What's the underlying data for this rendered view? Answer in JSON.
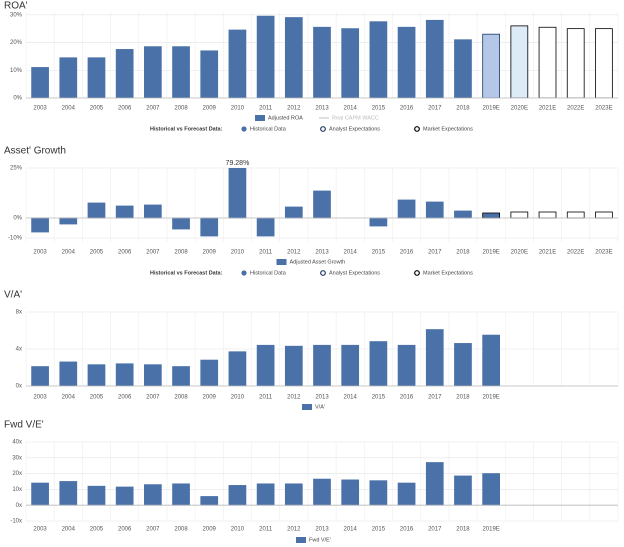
{
  "chart_data": [
    {
      "type": "bar",
      "title": "ROA'",
      "categories": [
        "2003",
        "2004",
        "2005",
        "2006",
        "2007",
        "2008",
        "2009",
        "2010",
        "2011",
        "2012",
        "2013",
        "2014",
        "2015",
        "2016",
        "2017",
        "2018",
        "2019E",
        "2020E",
        "2021E",
        "2022E",
        "2023E"
      ],
      "values": [
        11,
        14.5,
        14.5,
        17.5,
        18.5,
        18.5,
        17,
        24.5,
        29.5,
        29,
        25.5,
        25,
        27.5,
        25.5,
        28,
        21,
        23,
        26,
        25.5,
        25,
        25
      ],
      "colors": [
        "#4a72a8",
        "#4a72a8",
        "#4a72a8",
        "#4a72a8",
        "#4a72a8",
        "#4a72a8",
        "#4a72a8",
        "#4a72a8",
        "#4a72a8",
        "#4a72a8",
        "#4a72a8",
        "#4a72a8",
        "#4a72a8",
        "#4a72a8",
        "#4a72a8",
        "#4a72a8",
        "#b4c7e7",
        "#ddebf7",
        "#ffffff",
        "#ffffff",
        "#ffffff"
      ],
      "edgecolors": [
        "#4a72a8",
        "#4a72a8",
        "#4a72a8",
        "#4a72a8",
        "#4a72a8",
        "#4a72a8",
        "#4a72a8",
        "#4a72a8",
        "#4a72a8",
        "#4a72a8",
        "#4a72a8",
        "#4a72a8",
        "#4a72a8",
        "#4a72a8",
        "#4a72a8",
        "#4a72a8",
        "#1f3864",
        "#000000",
        "#000000",
        "#000000",
        "#000000"
      ],
      "ylim": [
        0,
        31
      ],
      "yticks": [
        {
          "value": 0,
          "label": "0%"
        },
        {
          "value": 10,
          "label": "10%"
        },
        {
          "value": 20,
          "label": "20%"
        },
        {
          "value": 30,
          "label": "30%"
        }
      ],
      "legend": [
        {
          "label": "Adjusted ROA",
          "color": "#4a72a8",
          "kind": "box"
        },
        {
          "label": "Real CAPM WACC",
          "color": "#cccccc",
          "kind": "line"
        }
      ],
      "forecast_legend": {
        "title": "Historical vs Forecast Data:",
        "items": [
          {
            "label": "Historical Data",
            "color": "#4a72a8",
            "kind": "dot"
          },
          {
            "label": "Analyst Expectations",
            "color": "#1f3864",
            "kind": "ring"
          },
          {
            "label": "Market Expectations",
            "color": "#000000",
            "kind": "ring"
          }
        ]
      }
    },
    {
      "type": "bar",
      "title": "Asset' Growth",
      "categories": [
        "2003",
        "2004",
        "2005",
        "2006",
        "2007",
        "2008",
        "2009",
        "2010",
        "2011",
        "2012",
        "2013",
        "2014",
        "2015",
        "2016",
        "2017",
        "2018",
        "2019E",
        "2020E",
        "2021E",
        "2022E",
        "2023E"
      ],
      "values": [
        -7,
        -3,
        7.5,
        6,
        6.5,
        -5.5,
        -9,
        79.28,
        -9,
        5.5,
        13.5,
        0,
        -4,
        9,
        8,
        3.5,
        2.5,
        3,
        3,
        3,
        3
      ],
      "value_labels": [
        null,
        null,
        null,
        null,
        null,
        null,
        null,
        "79.28%",
        null,
        null,
        null,
        null,
        null,
        null,
        null,
        null,
        null,
        null,
        null,
        null,
        null
      ],
      "colors": [
        "#4a72a8",
        "#4a72a8",
        "#4a72a8",
        "#4a72a8",
        "#4a72a8",
        "#4a72a8",
        "#4a72a8",
        "#4a72a8",
        "#4a72a8",
        "#4a72a8",
        "#4a72a8",
        "#4a72a8",
        "#4a72a8",
        "#4a72a8",
        "#4a72a8",
        "#4a72a8",
        "#4a72a8",
        "#ffffff",
        "#ffffff",
        "#ffffff",
        "#ffffff"
      ],
      "edgecolors": [
        "#4a72a8",
        "#4a72a8",
        "#4a72a8",
        "#4a72a8",
        "#4a72a8",
        "#4a72a8",
        "#4a72a8",
        "#4a72a8",
        "#4a72a8",
        "#4a72a8",
        "#4a72a8",
        "#4a72a8",
        "#4a72a8",
        "#4a72a8",
        "#4a72a8",
        "#4a72a8",
        "#000000",
        "#000000",
        "#000000",
        "#000000",
        "#000000"
      ],
      "ylim": [
        -12,
        25
      ],
      "yticks": [
        {
          "value": -10,
          "label": "-10%"
        },
        {
          "value": 0,
          "label": "0%"
        },
        {
          "value": 25,
          "label": "25%"
        }
      ],
      "legend": [
        {
          "label": "Adjusted Asset Growth",
          "color": "#4a72a8",
          "kind": "box"
        }
      ],
      "forecast_legend": {
        "title": "Historical vs Forecast Data:",
        "items": [
          {
            "label": "Historical Data",
            "color": "#4a72a8",
            "kind": "dot"
          },
          {
            "label": "Analyst Expectations",
            "color": "#1f3864",
            "kind": "ring"
          },
          {
            "label": "Market Expectations",
            "color": "#000000",
            "kind": "ring"
          }
        ]
      }
    },
    {
      "type": "bar",
      "title": "V/A'",
      "categories": [
        "2003",
        "2004",
        "2005",
        "2006",
        "2007",
        "2008",
        "2009",
        "2010",
        "2011",
        "2012",
        "2013",
        "2014",
        "2015",
        "2016",
        "2017",
        "2018",
        "2019E",
        null,
        null,
        null,
        null
      ],
      "values": [
        2.1,
        2.6,
        2.3,
        2.4,
        2.3,
        2.1,
        2.8,
        3.7,
        4.4,
        4.3,
        4.4,
        4.4,
        4.8,
        4.4,
        6.1,
        4.6,
        5.5,
        null,
        null,
        null,
        null
      ],
      "color": "#4a72a8",
      "ylim": [
        0,
        8
      ],
      "yticks": [
        {
          "value": 0,
          "label": "0x"
        },
        {
          "value": 4,
          "label": "4x"
        },
        {
          "value": 8,
          "label": "8x"
        }
      ],
      "legend": [
        {
          "label": "V/A'",
          "color": "#4a72a8",
          "kind": "box"
        }
      ]
    },
    {
      "type": "bar",
      "title": "Fwd V/E'",
      "categories": [
        "2003",
        "2004",
        "2005",
        "2006",
        "2007",
        "2008",
        "2009",
        "2010",
        "2011",
        "2012",
        "2013",
        "2014",
        "2015",
        "2016",
        "2017",
        "2018",
        "2019E",
        null,
        null,
        null,
        null
      ],
      "values": [
        14,
        15,
        12,
        11.5,
        13,
        13.5,
        5.5,
        12.5,
        13.5,
        13.5,
        16.5,
        16,
        15.5,
        14,
        27,
        18.5,
        20,
        null,
        null,
        null,
        null
      ],
      "color": "#4a72a8",
      "ylim": [
        -10,
        40
      ],
      "yticks": [
        {
          "value": -10,
          "label": "-10x"
        },
        {
          "value": 0,
          "label": "0x"
        },
        {
          "value": 10,
          "label": "10x"
        },
        {
          "value": 20,
          "label": "20x"
        },
        {
          "value": 30,
          "label": "30x"
        },
        {
          "value": 40,
          "label": "40x"
        }
      ],
      "legend": [
        {
          "label": "Fwd V/E'",
          "color": "#4a72a8",
          "kind": "box"
        }
      ]
    }
  ]
}
